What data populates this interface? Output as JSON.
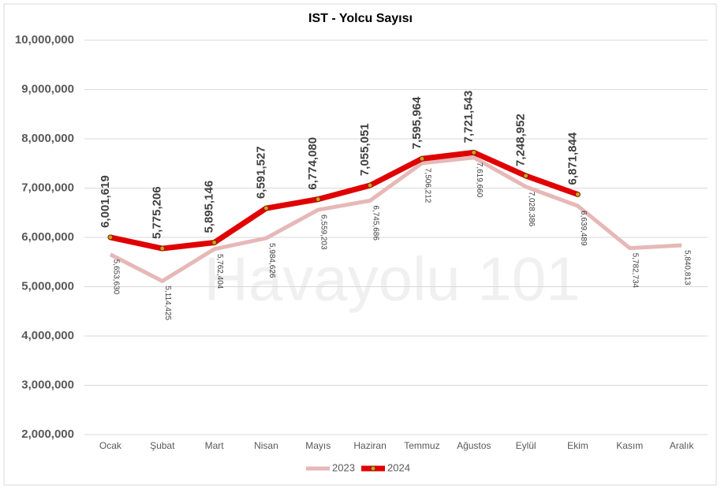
{
  "chart_data": {
    "type": "line",
    "title": "IST - Yolcu Sayısı",
    "watermark": "Havayolu 101",
    "categories": [
      "Ocak",
      "Şubat",
      "Mart",
      "Nisan",
      "Mayıs",
      "Haziran",
      "Temmuz",
      "Ağustos",
      "Eylül",
      "Ekim",
      "Kasım",
      "Aralık"
    ],
    "series": [
      {
        "name": "2023",
        "color": "#e6b8b7",
        "values": [
          5653630,
          5114425,
          5762404,
          5984626,
          6559203,
          6745686,
          7506212,
          7619660,
          7028386,
          6639489,
          5782734,
          5840813
        ],
        "value_labels": [
          "5,653,630",
          "5,114,425",
          "5,762,404",
          "5,984,626",
          "6,559,203",
          "6,745,686",
          "7,506,212",
          "7,619,660",
          "7,028,386",
          "6,639,489",
          "5,782,734",
          "5,840,813"
        ]
      },
      {
        "name": "2024",
        "color": "#e00000",
        "values": [
          6001619,
          5775206,
          5895146,
          6591527,
          6774080,
          7055051,
          7595964,
          7721543,
          7248952,
          6871844,
          null,
          null
        ],
        "value_labels": [
          "6,001,619",
          "5,775,206",
          "5,895,146",
          "6,591,527",
          "6,774,080",
          "7,055,051",
          "7,595,964",
          "7,721,543",
          "7,248,952",
          "6,871,844",
          null,
          null
        ]
      }
    ],
    "ylim": [
      2000000,
      10000000
    ],
    "yticks": [
      {
        "value": 2000000,
        "label": "2,000,000"
      },
      {
        "value": 3000000,
        "label": "3,000,000"
      },
      {
        "value": 4000000,
        "label": "4,000,000"
      },
      {
        "value": 5000000,
        "label": "5,000,000"
      },
      {
        "value": 6000000,
        "label": "6,000,000"
      },
      {
        "value": 7000000,
        "label": "7,000,000"
      },
      {
        "value": 8000000,
        "label": "8,000,000"
      },
      {
        "value": 9000000,
        "label": "9,000,000"
      },
      {
        "value": 10000000,
        "label": "10,000,000"
      }
    ],
    "grid": true,
    "legend": "bottom"
  }
}
